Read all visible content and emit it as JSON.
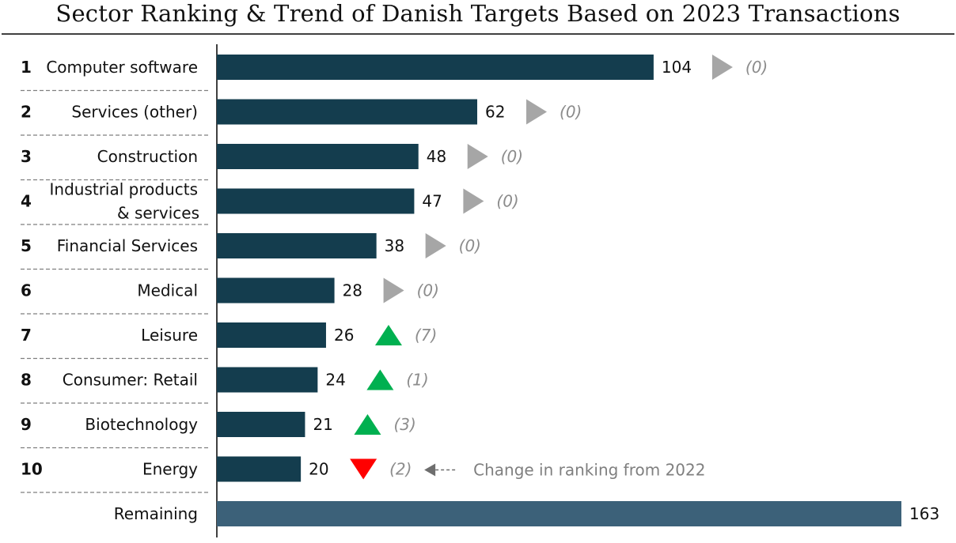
{
  "chart_data": {
    "type": "bar",
    "orientation": "horizontal",
    "title": "Sector Ranking & Trend of Danish Targets Based on 2023 Transactions",
    "categories": [
      "Computer software",
      "Services (other)",
      "Construction",
      "Industrial products & services",
      "Financial Services",
      "Medical",
      "Leisure",
      "Consumer: Retail",
      "Biotechnology",
      "Energy",
      "Remaining"
    ],
    "category_lines": [
      [
        "Computer software"
      ],
      [
        "Services (other)"
      ],
      [
        "Construction"
      ],
      [
        "Industrial products",
        "& services"
      ],
      [
        "Financial Services"
      ],
      [
        "Medical"
      ],
      [
        "Leisure"
      ],
      [
        "Consumer: Retail"
      ],
      [
        "Biotechnology"
      ],
      [
        "Energy"
      ],
      [
        "Remaining"
      ]
    ],
    "ranks": [
      "1",
      "2",
      "3",
      "4",
      "5",
      "6",
      "7",
      "8",
      "9",
      "10",
      ""
    ],
    "values": [
      104,
      62,
      48,
      47,
      38,
      28,
      26,
      24,
      21,
      20,
      163
    ],
    "value_labels": [
      "104",
      "62",
      "48",
      "47",
      "38",
      "28",
      "26",
      "24",
      "21",
      "20",
      "163"
    ],
    "trend": [
      "flat",
      "flat",
      "flat",
      "flat",
      "flat",
      "flat",
      "up",
      "up",
      "up",
      "down",
      null
    ],
    "change_labels": [
      "(0)",
      "(0)",
      "(0)",
      "(0)",
      "(0)",
      "(0)",
      "(7)",
      "(1)",
      "(3)",
      "(2)",
      ""
    ],
    "annotation": "Change in ranking from 2022",
    "xlim": [
      0,
      163
    ],
    "grid": false,
    "legend": "none"
  },
  "colors": {
    "bar": "#143d4e",
    "bar_remaining": "#3c6179",
    "flat": "#a6a6a6",
    "up": "#00b050",
    "down": "#ff0000",
    "annotation_arrow": "#6e6e6e",
    "separator": "#7f7f7f",
    "axis": "#000000"
  }
}
